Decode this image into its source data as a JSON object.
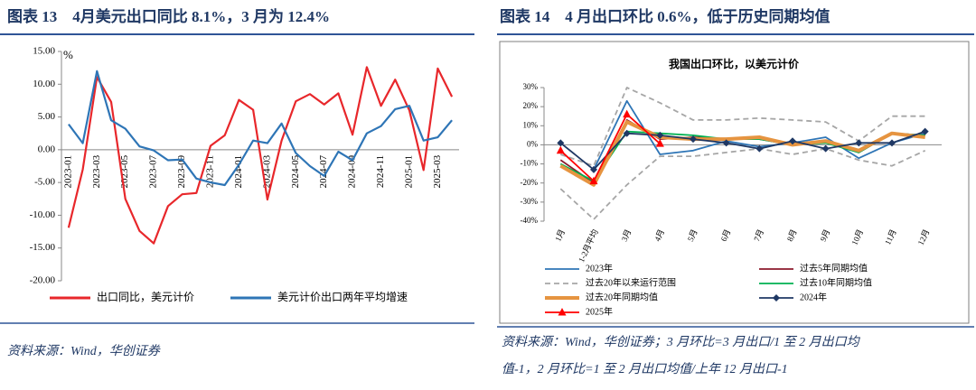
{
  "chart_data": [
    {
      "type": "line",
      "heading": "图表 13　4月美元出口同比 8.1%，3 月为 12.4%",
      "y_unit": "%",
      "source": "资料来源：Wind，华创证券",
      "categories": [
        "2023-01",
        null,
        "2023-03",
        null,
        "2023-05",
        null,
        "2023-07",
        null,
        "2023-09",
        null,
        "2023-11",
        null,
        "2024-01",
        null,
        "2024-03",
        null,
        "2024-05",
        null,
        "2024-07",
        null,
        "2024-09",
        null,
        "2024-11",
        null,
        "2025-01",
        null,
        "2025-03",
        null
      ],
      "ylim": [
        -20,
        15
      ],
      "yticks": [
        {
          "value": -20,
          "label": "-20.00"
        },
        {
          "value": -15,
          "label": "-15.00"
        },
        {
          "value": -10,
          "label": "-10.00"
        },
        {
          "value": -5,
          "label": "-5.00"
        },
        {
          "value": 0,
          "label": "0.00"
        },
        {
          "value": 5,
          "label": "5.00"
        },
        {
          "value": 10,
          "label": "10.00"
        },
        {
          "value": 15,
          "label": "15.00"
        }
      ],
      "legend": "bottom",
      "series": [
        {
          "name": "出口同比，美元计价",
          "color": "#e8272b",
          "values": [
            -11.9,
            -3,
            11.1,
            7.3,
            -7.5,
            -12.4,
            -14.3,
            -8.6,
            -6.8,
            -6.6,
            0.6,
            2.2,
            7.6,
            6.1,
            -7.6,
            1.4,
            7.4,
            8.5,
            6.9,
            8.6,
            2.3,
            12.6,
            6.7,
            10.7,
            6.0,
            -3.1,
            12.4,
            8.1
          ]
        },
        {
          "name": "美元计价出口两年平均增速",
          "color": "#2e75b6",
          "values": [
            3.9,
            1.0,
            12.0,
            4.5,
            3.2,
            0.5,
            -0.1,
            -1.6,
            -1.5,
            -4.4,
            -5.0,
            -5.4,
            -2.3,
            1.4,
            1.0,
            4.0,
            -0.5,
            -2.5,
            -4.0,
            -0.3,
            -1.6,
            2.5,
            3.6,
            6.2,
            6.7,
            1.4,
            1.9,
            4.5
          ]
        }
      ]
    },
    {
      "type": "line",
      "heading": "图表 14　4 月出口环比 0.6%，低于历史同期均值",
      "title": "我国出口环比，以美元计价",
      "source": [
        "资料来源：Wind，华创证券；3 月环比=3 月出口/1 至 2 月出口均",
        "值-1，2 月环比=1 至 2 月出口均值/上年 12 月出口-1"
      ],
      "categories": [
        "1月",
        "1-2月平均",
        "3月",
        "4月",
        "5月",
        "6月",
        "7月",
        "8月",
        "9月",
        "10月",
        "11月",
        "12月"
      ],
      "ylim": [
        -40,
        30
      ],
      "yticks": [
        {
          "value": -40,
          "label": "-40%"
        },
        {
          "value": -30,
          "label": "-30%"
        },
        {
          "value": -20,
          "label": "-20%"
        },
        {
          "value": -10,
          "label": "-10%"
        },
        {
          "value": 0,
          "label": "0%"
        },
        {
          "value": 10,
          "label": "10%"
        },
        {
          "value": 20,
          "label": "20%"
        },
        {
          "value": 30,
          "label": "30%"
        }
      ],
      "legend": "bottom",
      "series": [
        {
          "name": "2023年",
          "color": "#2e75b6",
          "width": 1.8,
          "values": [
            null,
            -13,
            23,
            -5,
            -3,
            2,
            -1,
            1,
            4,
            -7,
            1,
            6
          ]
        },
        {
          "name": "过去5年同期均值",
          "color": "#8b1a2b",
          "width": 1.8,
          "values": [
            -8,
            -20,
            13,
            3,
            4,
            3,
            3,
            0,
            2,
            -4,
            6,
            5
          ]
        },
        {
          "name": "过去20年以来运行范围",
          "color": "#a6a6a6",
          "width": 1.8,
          "dash": true,
          "values": [
            -5,
            -11,
            30,
            22,
            13,
            13,
            14,
            13,
            12,
            2,
            15,
            15
          ],
          "lower": [
            -23,
            -39,
            -21,
            -6,
            -6,
            -4,
            -2,
            -5,
            -2,
            -8,
            -11,
            -3
          ]
        },
        {
          "name": "过去10年同期均值",
          "color": "#00b050",
          "width": 1.8,
          "values": [
            -10,
            -19,
            7,
            6,
            5,
            3,
            3,
            0,
            1,
            -4,
            6,
            5
          ]
        },
        {
          "name": "过去20年同期均值",
          "color": "#e69440",
          "width": 4,
          "values": [
            -11,
            -21,
            12,
            4,
            3,
            3,
            4,
            0,
            2,
            -3,
            6,
            4
          ]
        },
        {
          "name": "2024年",
          "color": "#1f3864",
          "width": 1.8,
          "marker": "diamond",
          "values": [
            1,
            -13,
            6,
            5,
            3,
            1,
            -2,
            2,
            -2,
            1,
            1,
            7
          ]
        },
        {
          "name": "2025年",
          "color": "#ff0000",
          "width": 1.8,
          "marker": "triangle",
          "values": [
            -3,
            -19,
            16,
            0.6,
            null,
            null,
            null,
            null,
            null,
            null,
            null,
            null
          ]
        }
      ]
    }
  ]
}
